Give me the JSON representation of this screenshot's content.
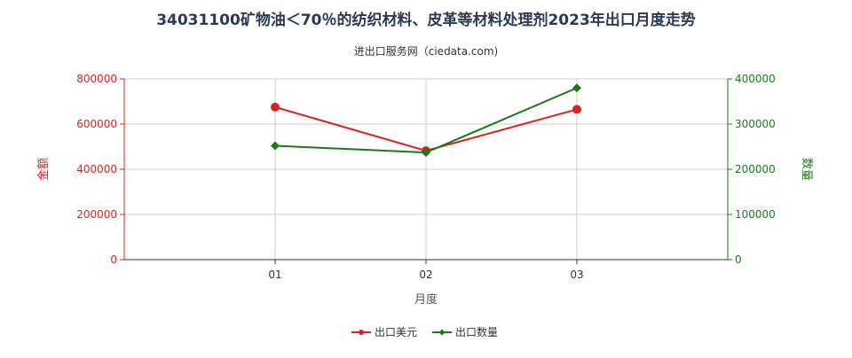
{
  "title": "34031100矿物油＜70％的纺织材料、皮革等材料处理剂2023年出口月度走势",
  "subtitle": "进出口服务网（ciedata.com)",
  "colors": {
    "left_axis": "#e02020",
    "right_axis": "#1a7a1a",
    "grid": "#cccccc",
    "axis": "#333333",
    "title": "#2b3a55"
  },
  "chart_data": {
    "type": "line",
    "title": "34031100矿物油＜70％的纺织材料、皮革等材料处理剂2023年出口月度走势",
    "subtitle": "进出口服务网（ciedata.com)",
    "xlabel": "月度",
    "ylabel_left": "金额",
    "ylabel_right": "数量",
    "categories": [
      "01",
      "02",
      "03"
    ],
    "ylim_left": [
      0,
      800000
    ],
    "ylim_right": [
      0,
      400000
    ],
    "yticks_left": [
      "0",
      "200000",
      "400000",
      "600000",
      "800000"
    ],
    "yticks_right": [
      "0",
      "100000",
      "200000",
      "300000",
      "400000"
    ],
    "grid": true,
    "legend_position": "bottom-center",
    "series": [
      {
        "name": "出口美元",
        "axis": "left",
        "color": "#e02020",
        "marker": "circle",
        "values": [
          675000,
          482000,
          665000
        ]
      },
      {
        "name": "出口数量",
        "axis": "right",
        "color": "#1a7a1a",
        "marker": "diamond",
        "values": [
          252000,
          237000,
          380000
        ]
      }
    ]
  }
}
